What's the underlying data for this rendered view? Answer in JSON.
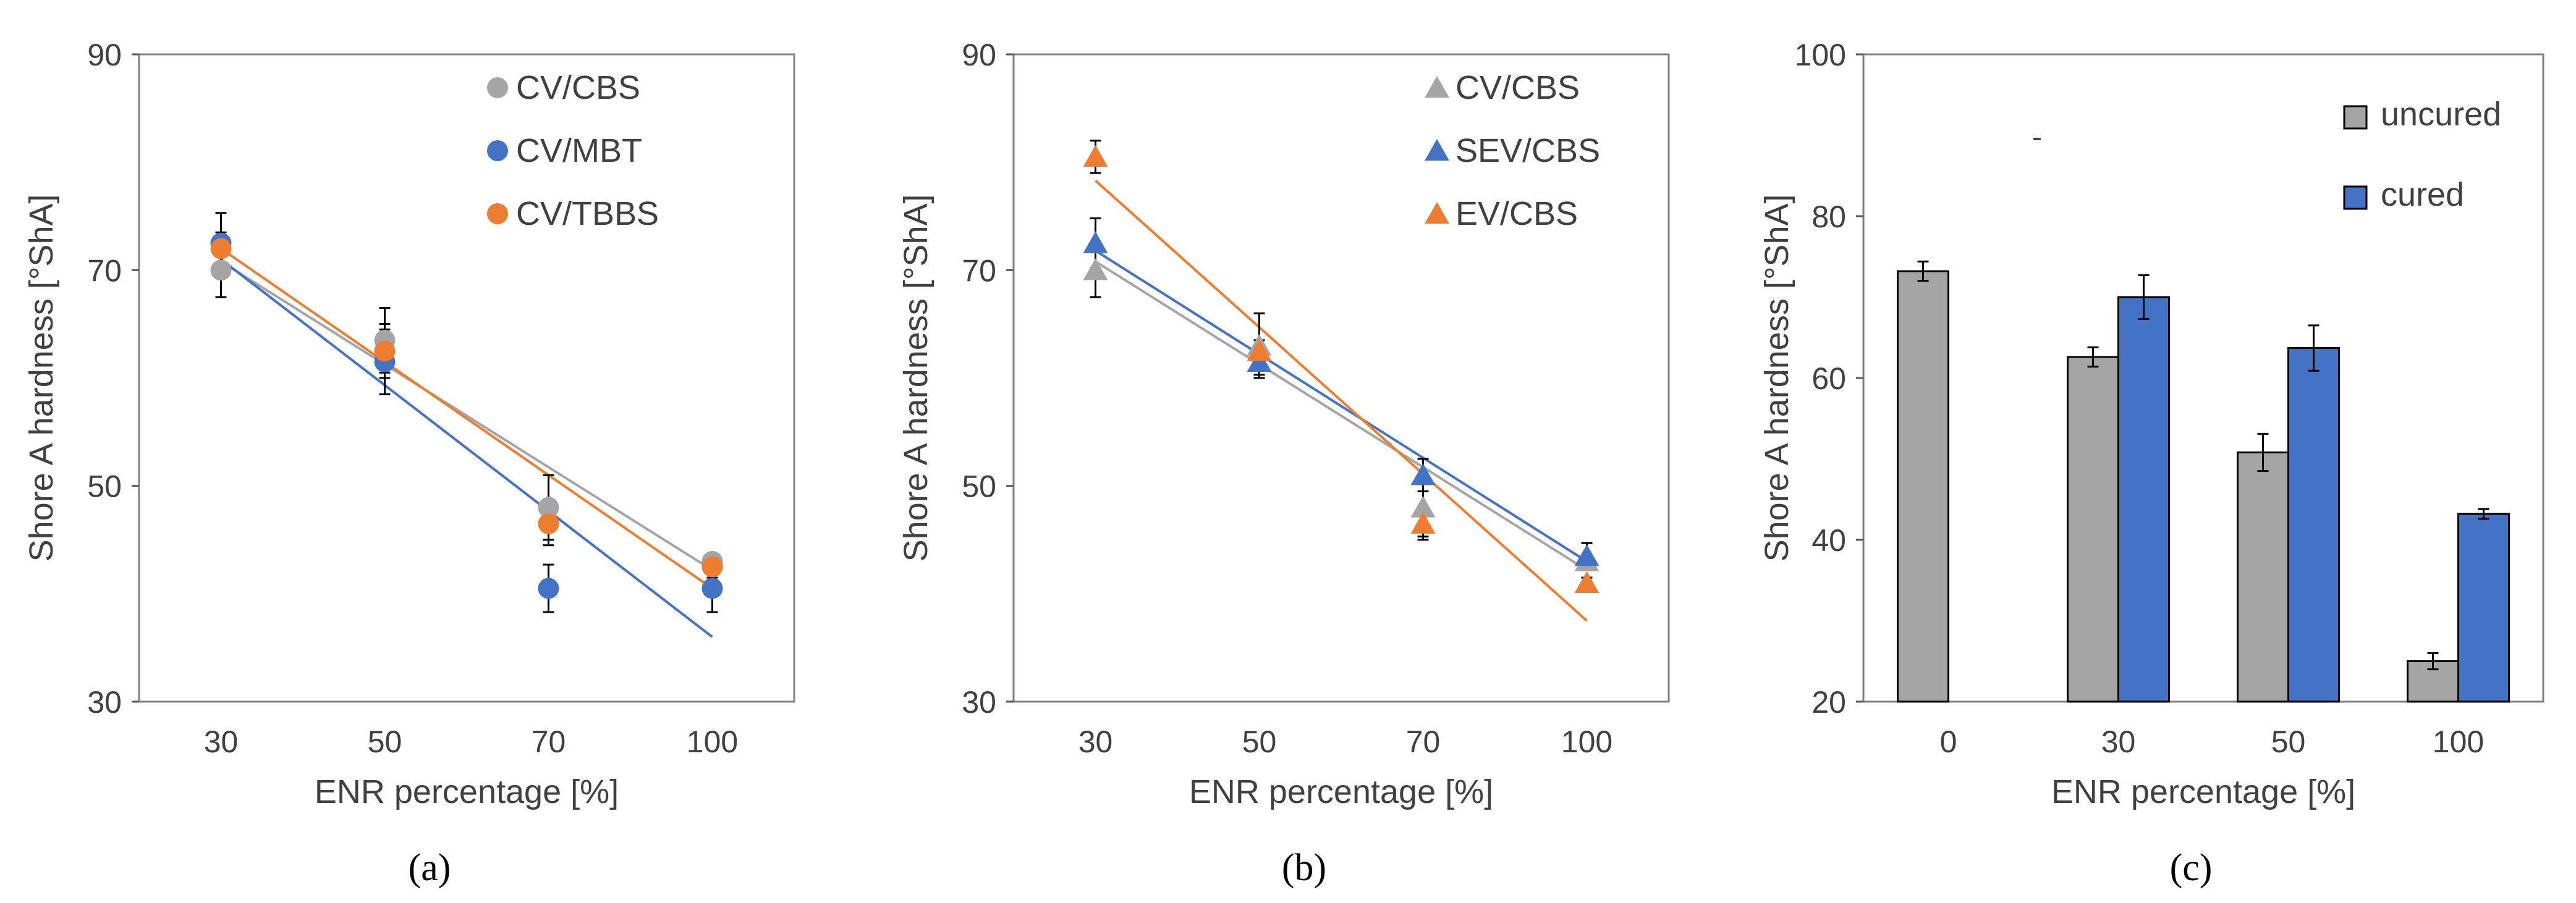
{
  "figure": {
    "panel_labels": [
      "(a)",
      "(b)",
      "(c)"
    ]
  },
  "colors": {
    "gray": "#a5a5a5",
    "blue": "#4472c4",
    "orange": "#ed7d31",
    "axis": "#595959",
    "text": "#404040"
  },
  "chart_data": [
    {
      "type": "scatter",
      "panel": "(a)",
      "title": "",
      "xlabel": "ENR percentage [%]",
      "ylabel": "Shore A hardness [°ShA]",
      "categories": [
        "30",
        "50",
        "70",
        "100"
      ],
      "x": [
        30,
        50,
        70,
        100
      ],
      "xlim": [
        20,
        110
      ],
      "ylim": [
        30,
        90
      ],
      "yticks": [
        "30",
        "50",
        "70",
        "90"
      ],
      "grid": false,
      "legend_position": "top-right",
      "marker": "circle",
      "series": [
        {
          "name": "CV/CBS",
          "color": "#a5a5a5",
          "values": [
            70,
            63.5,
            48,
            43
          ],
          "errors": [
            2.5,
            3,
            3,
            0.5
          ],
          "trend": [
            70.8,
            42.2
          ]
        },
        {
          "name": "CV/MBT",
          "color": "#4472c4",
          "values": [
            72.5,
            61.5,
            40.5,
            40.5
          ],
          "errors": [
            2.8,
            3,
            2.2,
            2.2
          ],
          "trend": [
            71.0,
            36.0
          ]
        },
        {
          "name": "CV/TBBS",
          "color": "#ed7d31",
          "values": [
            72,
            62.5,
            46.5,
            42.5
          ],
          "errors": [
            1.5,
            2.5,
            2,
            1
          ],
          "trend": [
            72.0,
            40.5
          ]
        }
      ]
    },
    {
      "type": "scatter",
      "panel": "(b)",
      "title": "",
      "xlabel": "ENR percentage [%]",
      "ylabel": "Shore A hardness [°ShA]",
      "categories": [
        "30",
        "50",
        "70",
        "100"
      ],
      "x": [
        30,
        50,
        70,
        100
      ],
      "xlim": [
        20,
        110
      ],
      "ylim": [
        30,
        90
      ],
      "yticks": [
        "30",
        "50",
        "70",
        "90"
      ],
      "grid": false,
      "legend_position": "top-right",
      "marker": "triangle",
      "series": [
        {
          "name": "CV/CBS",
          "color": "#a5a5a5",
          "values": [
            70,
            63,
            48,
            43
          ],
          "errors": [
            2.5,
            3,
            3,
            0.6
          ],
          "trend": [
            70.8,
            42.2
          ]
        },
        {
          "name": "SEV/CBS",
          "color": "#4472c4",
          "values": [
            72.5,
            61.5,
            51,
            43.5
          ],
          "errors": [
            2.3,
            1.2,
            1.5,
            1.2
          ],
          "trend": [
            71.8,
            43.0
          ]
        },
        {
          "name": "EV/CBS",
          "color": "#ed7d31",
          "values": [
            80.5,
            62.5,
            46.5,
            41
          ],
          "errors": [
            1.5,
            1,
            1.2,
            0.5
          ],
          "trend": [
            78.3,
            37.5
          ]
        }
      ]
    },
    {
      "type": "bar",
      "panel": "(c)",
      "title": "",
      "xlabel": "ENR percentage [%]",
      "ylabel": "Shore A hardness [°ShA]",
      "categories": [
        "0",
        "30",
        "50",
        "100"
      ],
      "ylim": [
        20,
        100
      ],
      "yticks": [
        "20",
        "40",
        "60",
        "80",
        "100"
      ],
      "grid": false,
      "legend_position": "top-right",
      "annotation": "-",
      "series": [
        {
          "name": "uncured",
          "color": "#a5a5a5",
          "values": [
            73.2,
            62.6,
            50.8,
            25
          ],
          "errors": [
            1.2,
            1.2,
            2.3,
            1
          ]
        },
        {
          "name": "cured",
          "color": "#4472c4",
          "values": [
            null,
            70,
            63.7,
            43.2
          ],
          "errors": [
            null,
            2.7,
            2.8,
            0.6
          ]
        }
      ]
    }
  ]
}
